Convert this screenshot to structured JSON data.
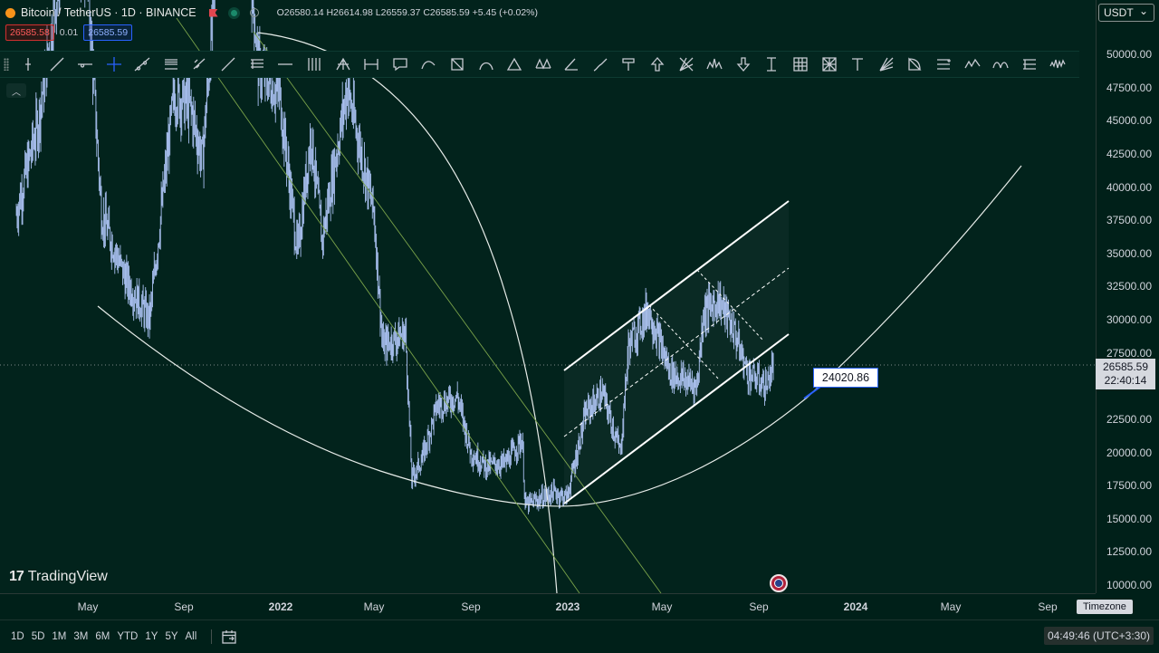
{
  "header": {
    "symbol": "Bitcoin / TetherUS · 1D · BINANCE",
    "ohlc": "O26580.14 H26614.98 L26559.37 C26585.59 +5.45 (+0.02%)"
  },
  "quote": {
    "sell": "26585.58",
    "spread": "0.01",
    "buy": "26585.59"
  },
  "currency": "USDT",
  "price_axis": {
    "labels": [
      "50000.00",
      "47500.00",
      "45000.00",
      "42500.00",
      "40000.00",
      "37500.00",
      "35000.00",
      "32500.00",
      "30000.00",
      "27500.00",
      "25000.00",
      "22500.00",
      "20000.00",
      "17500.00",
      "15000.00",
      "12500.00",
      "10000.00"
    ],
    "current_price": "26585.59",
    "countdown": "22:40:14"
  },
  "time_axis": {
    "labels": [
      "May",
      "Sep",
      "2022",
      "May",
      "Sep",
      "2023",
      "May",
      "Sep",
      "2024",
      "May",
      "Sep"
    ],
    "bold": [
      "2022",
      "2023",
      "2024"
    ]
  },
  "timezone_tooltip": "Timezone",
  "annotation_price": "24020.86",
  "brand": "TradingView",
  "ranges": [
    "1D",
    "5D",
    "1M",
    "3M",
    "6M",
    "YTD",
    "1Y",
    "5Y",
    "All"
  ],
  "clock": "04:49:46 (UTC+3:30)",
  "collapse_icon": "chevron-up-icon",
  "drawing_tools": [
    "cross-line-icon",
    "trend-line-icon",
    "horizontal-ray-icon",
    "crosshair-icon",
    "extended-line-icon",
    "parallel-channel-icon",
    "info-line-icon",
    "ray-icon",
    "fib-retracement-icon",
    "horizontal-line-icon",
    "vertical-lines-icon",
    "pitchfork-icon",
    "measure-icon",
    "callout-icon",
    "curve-icon",
    "rectangle-icon",
    "arc-icon",
    "triangle-icon",
    "xabcd-pattern-icon",
    "angle-icon",
    "brush-icon",
    "marker-icon",
    "arrow-up-icon",
    "gann-icon",
    "head-shoulders-icon",
    "arrow-down-icon",
    "price-range-icon",
    "grid-icon",
    "fib-grid-icon",
    "text-icon",
    "fib-fan-icon",
    "sector-icon",
    "fib-channel-icon",
    "wave-icon",
    "cyclic-lines-icon",
    "long-position-icon",
    "waveform-icon"
  ],
  "chart_data": {
    "type": "candlestick",
    "symbol": "BTCUSDT",
    "interval": "1D",
    "x_range": [
      "2021-02",
      "2024-10"
    ],
    "y_range": [
      10000,
      52500
    ],
    "last_close": 26585.59,
    "approx_path": [
      {
        "date": "2021-02-01",
        "price": 38000
      },
      {
        "date": "2021-03-01",
        "price": 45000
      },
      {
        "date": "2021-04-01",
        "price": 58000
      },
      {
        "date": "2021-05-01",
        "price": 57000
      },
      {
        "date": "2021-05-20",
        "price": 38000
      },
      {
        "date": "2021-06-20",
        "price": 33000
      },
      {
        "date": "2021-07-20",
        "price": 30000
      },
      {
        "date": "2021-08-20",
        "price": 47000
      },
      {
        "date": "2021-09-10",
        "price": 46000
      },
      {
        "date": "2021-09-25",
        "price": 42000
      },
      {
        "date": "2021-10-20",
        "price": 62000
      },
      {
        "date": "2021-11-10",
        "price": 68000
      },
      {
        "date": "2021-12-05",
        "price": 49000
      },
      {
        "date": "2022-01-01",
        "price": 47000
      },
      {
        "date": "2022-01-24",
        "price": 35000
      },
      {
        "date": "2022-02-10",
        "price": 44000
      },
      {
        "date": "2022-02-24",
        "price": 36000
      },
      {
        "date": "2022-03-28",
        "price": 47500
      },
      {
        "date": "2022-05-01",
        "price": 38000
      },
      {
        "date": "2022-05-12",
        "price": 28000
      },
      {
        "date": "2022-06-10",
        "price": 29000
      },
      {
        "date": "2022-06-18",
        "price": 18000
      },
      {
        "date": "2022-07-01",
        "price": 19500
      },
      {
        "date": "2022-07-20",
        "price": 23500
      },
      {
        "date": "2022-08-15",
        "price": 24200
      },
      {
        "date": "2022-09-01",
        "price": 20000
      },
      {
        "date": "2022-09-20",
        "price": 19000
      },
      {
        "date": "2022-10-15",
        "price": 19200
      },
      {
        "date": "2022-11-05",
        "price": 21000
      },
      {
        "date": "2022-11-09",
        "price": 16000
      },
      {
        "date": "2022-12-15",
        "price": 17000
      },
      {
        "date": "2023-01-01",
        "price": 16600
      },
      {
        "date": "2023-01-25",
        "price": 23000
      },
      {
        "date": "2023-02-15",
        "price": 24500
      },
      {
        "date": "2023-03-10",
        "price": 20000
      },
      {
        "date": "2023-03-20",
        "price": 28000
      },
      {
        "date": "2023-04-14",
        "price": 30800
      },
      {
        "date": "2023-05-12",
        "price": 26000
      },
      {
        "date": "2023-06-15",
        "price": 25000
      },
      {
        "date": "2023-06-23",
        "price": 30500
      },
      {
        "date": "2023-07-13",
        "price": 31500
      },
      {
        "date": "2023-08-01",
        "price": 29200
      },
      {
        "date": "2023-08-18",
        "price": 26000
      },
      {
        "date": "2023-09-11",
        "price": 25000
      },
      {
        "date": "2023-09-20",
        "price": 26585
      }
    ]
  }
}
